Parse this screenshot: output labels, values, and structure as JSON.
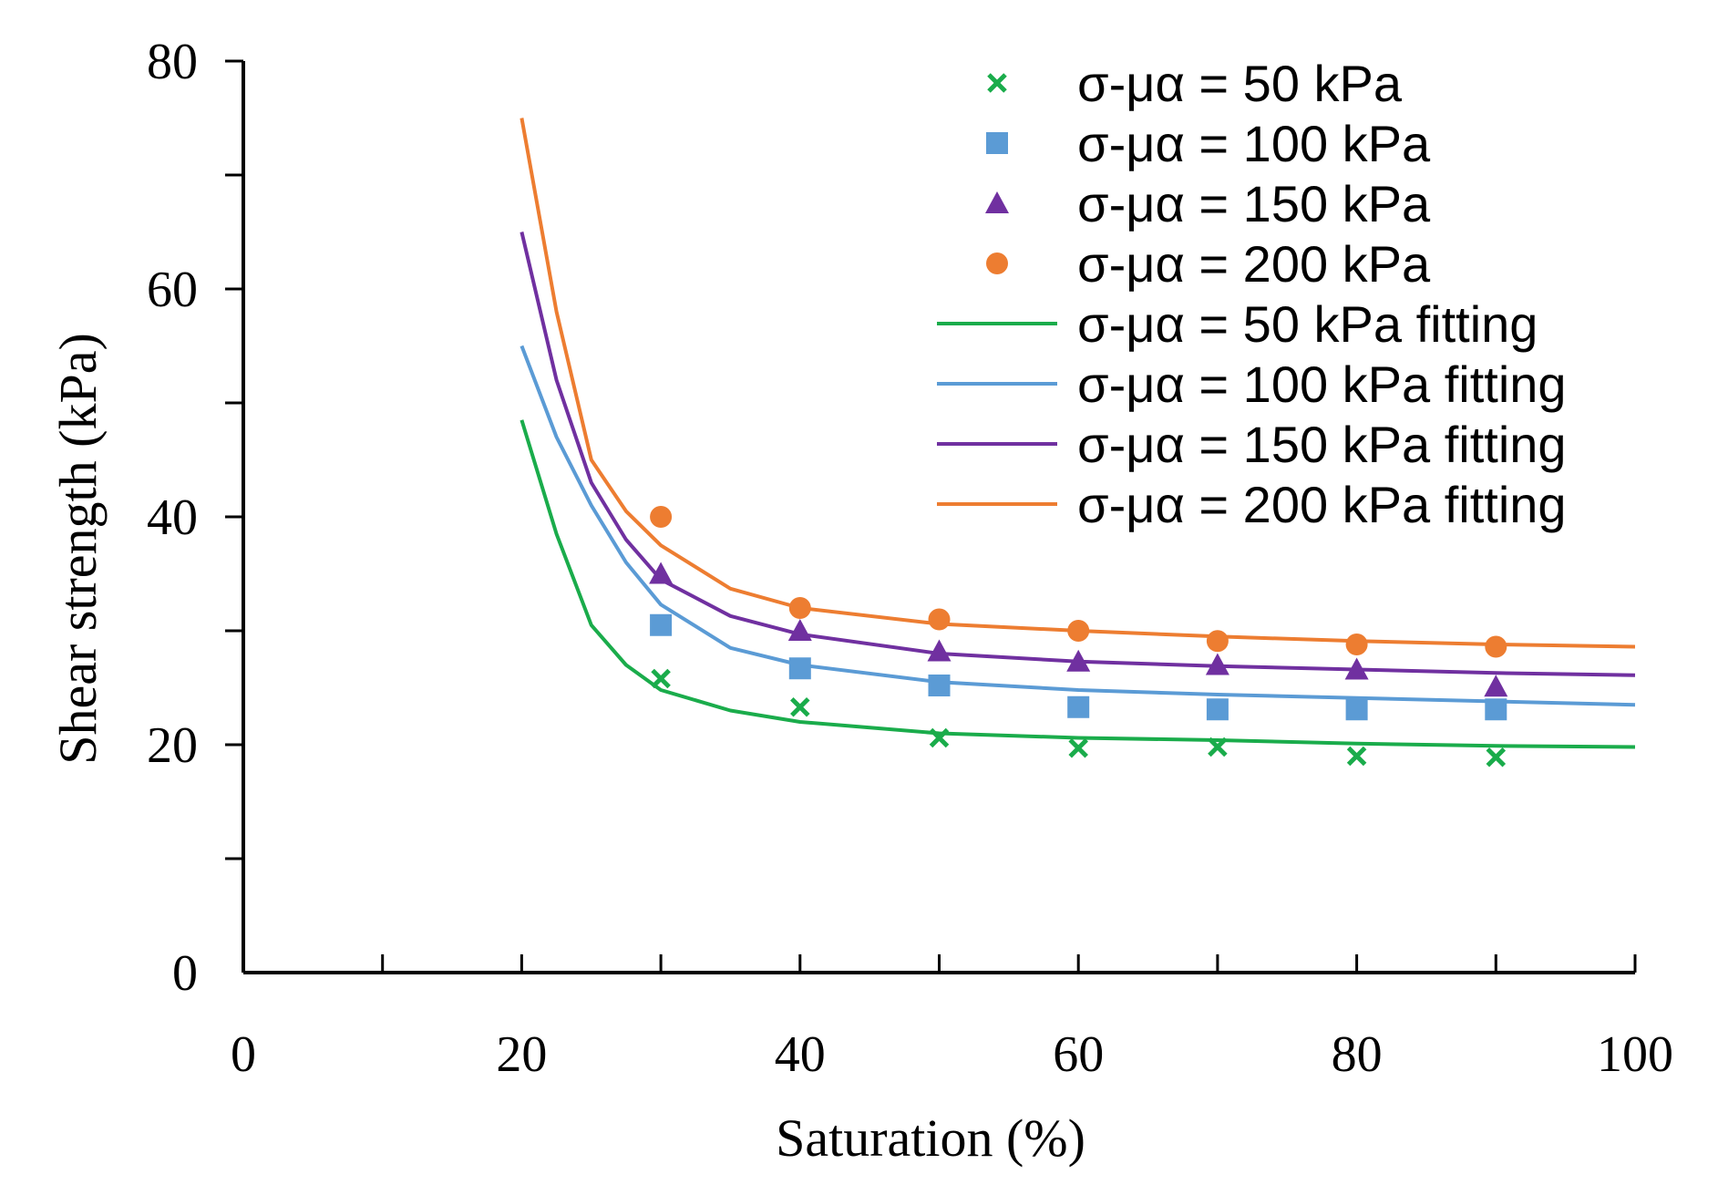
{
  "chart_data": {
    "type": "scatter",
    "xlabel": "Saturation (%)",
    "ylabel": "Shear strength (kPa)",
    "xlim": [
      0,
      100
    ],
    "ylim": [
      0,
      80
    ],
    "x_ticks": [
      0,
      20,
      40,
      60,
      80,
      100
    ],
    "y_ticks": [
      0,
      20,
      40,
      60,
      80
    ],
    "x_minor_ticks": [
      10,
      30,
      50,
      70,
      90
    ],
    "y_minor_ticks": [
      10,
      30,
      50,
      70
    ],
    "grid": false,
    "legend_position": "top-right",
    "x": [
      30,
      40,
      50,
      60,
      70,
      80,
      90
    ],
    "series": [
      {
        "name": "σ-μα = 50 kPa",
        "marker": "x",
        "color": "#1aac4b",
        "values": [
          25.8,
          23.3,
          20.6,
          19.7,
          19.8,
          19.0,
          18.9
        ]
      },
      {
        "name": "σ-μα = 100 kPa",
        "marker": "square",
        "color": "#5b9bd5",
        "values": [
          30.5,
          26.7,
          25.2,
          23.3,
          23.1,
          23.1,
          23.1
        ]
      },
      {
        "name": "σ-μα = 150 kPa",
        "marker": "triangle",
        "color": "#7030a0",
        "values": [
          35.0,
          30.0,
          28.2,
          27.3,
          27.0,
          26.6,
          25.1
        ]
      },
      {
        "name": "σ-μα = 200 kPa",
        "marker": "circle",
        "color": "#ed7d31",
        "values": [
          40.0,
          32.0,
          31.0,
          30.0,
          29.1,
          28.8,
          28.6
        ]
      }
    ],
    "fitting_x": [
      20,
      22.5,
      25,
      27.5,
      30,
      35,
      40,
      50,
      60,
      70,
      80,
      90,
      100
    ],
    "fitting_series": [
      {
        "name": "σ-μα = 50 kPa fitting",
        "color": "#1aac4b",
        "values": [
          48.5,
          38.5,
          30.5,
          27.0,
          24.8,
          23.0,
          22.0,
          21.0,
          20.6,
          20.4,
          20.1,
          19.9,
          19.8
        ]
      },
      {
        "name": "σ-μα = 100 kPa fitting",
        "color": "#5b9bd5",
        "values": [
          55.0,
          47.0,
          41.0,
          36.0,
          32.3,
          28.5,
          27.0,
          25.5,
          24.8,
          24.4,
          24.1,
          23.8,
          23.5
        ]
      },
      {
        "name": "σ-μα = 150 kPa fitting",
        "color": "#7030a0",
        "values": [
          65.0,
          52.0,
          43.0,
          38.0,
          34.5,
          31.3,
          29.7,
          28.0,
          27.3,
          26.9,
          26.6,
          26.3,
          26.1
        ]
      },
      {
        "name": "σ-μα = 200 kPa fitting",
        "color": "#ed7d31",
        "values": [
          75.0,
          58.0,
          45.0,
          40.5,
          37.5,
          33.7,
          32.0,
          30.6,
          30.0,
          29.5,
          29.1,
          28.8,
          28.6
        ]
      }
    ]
  }
}
